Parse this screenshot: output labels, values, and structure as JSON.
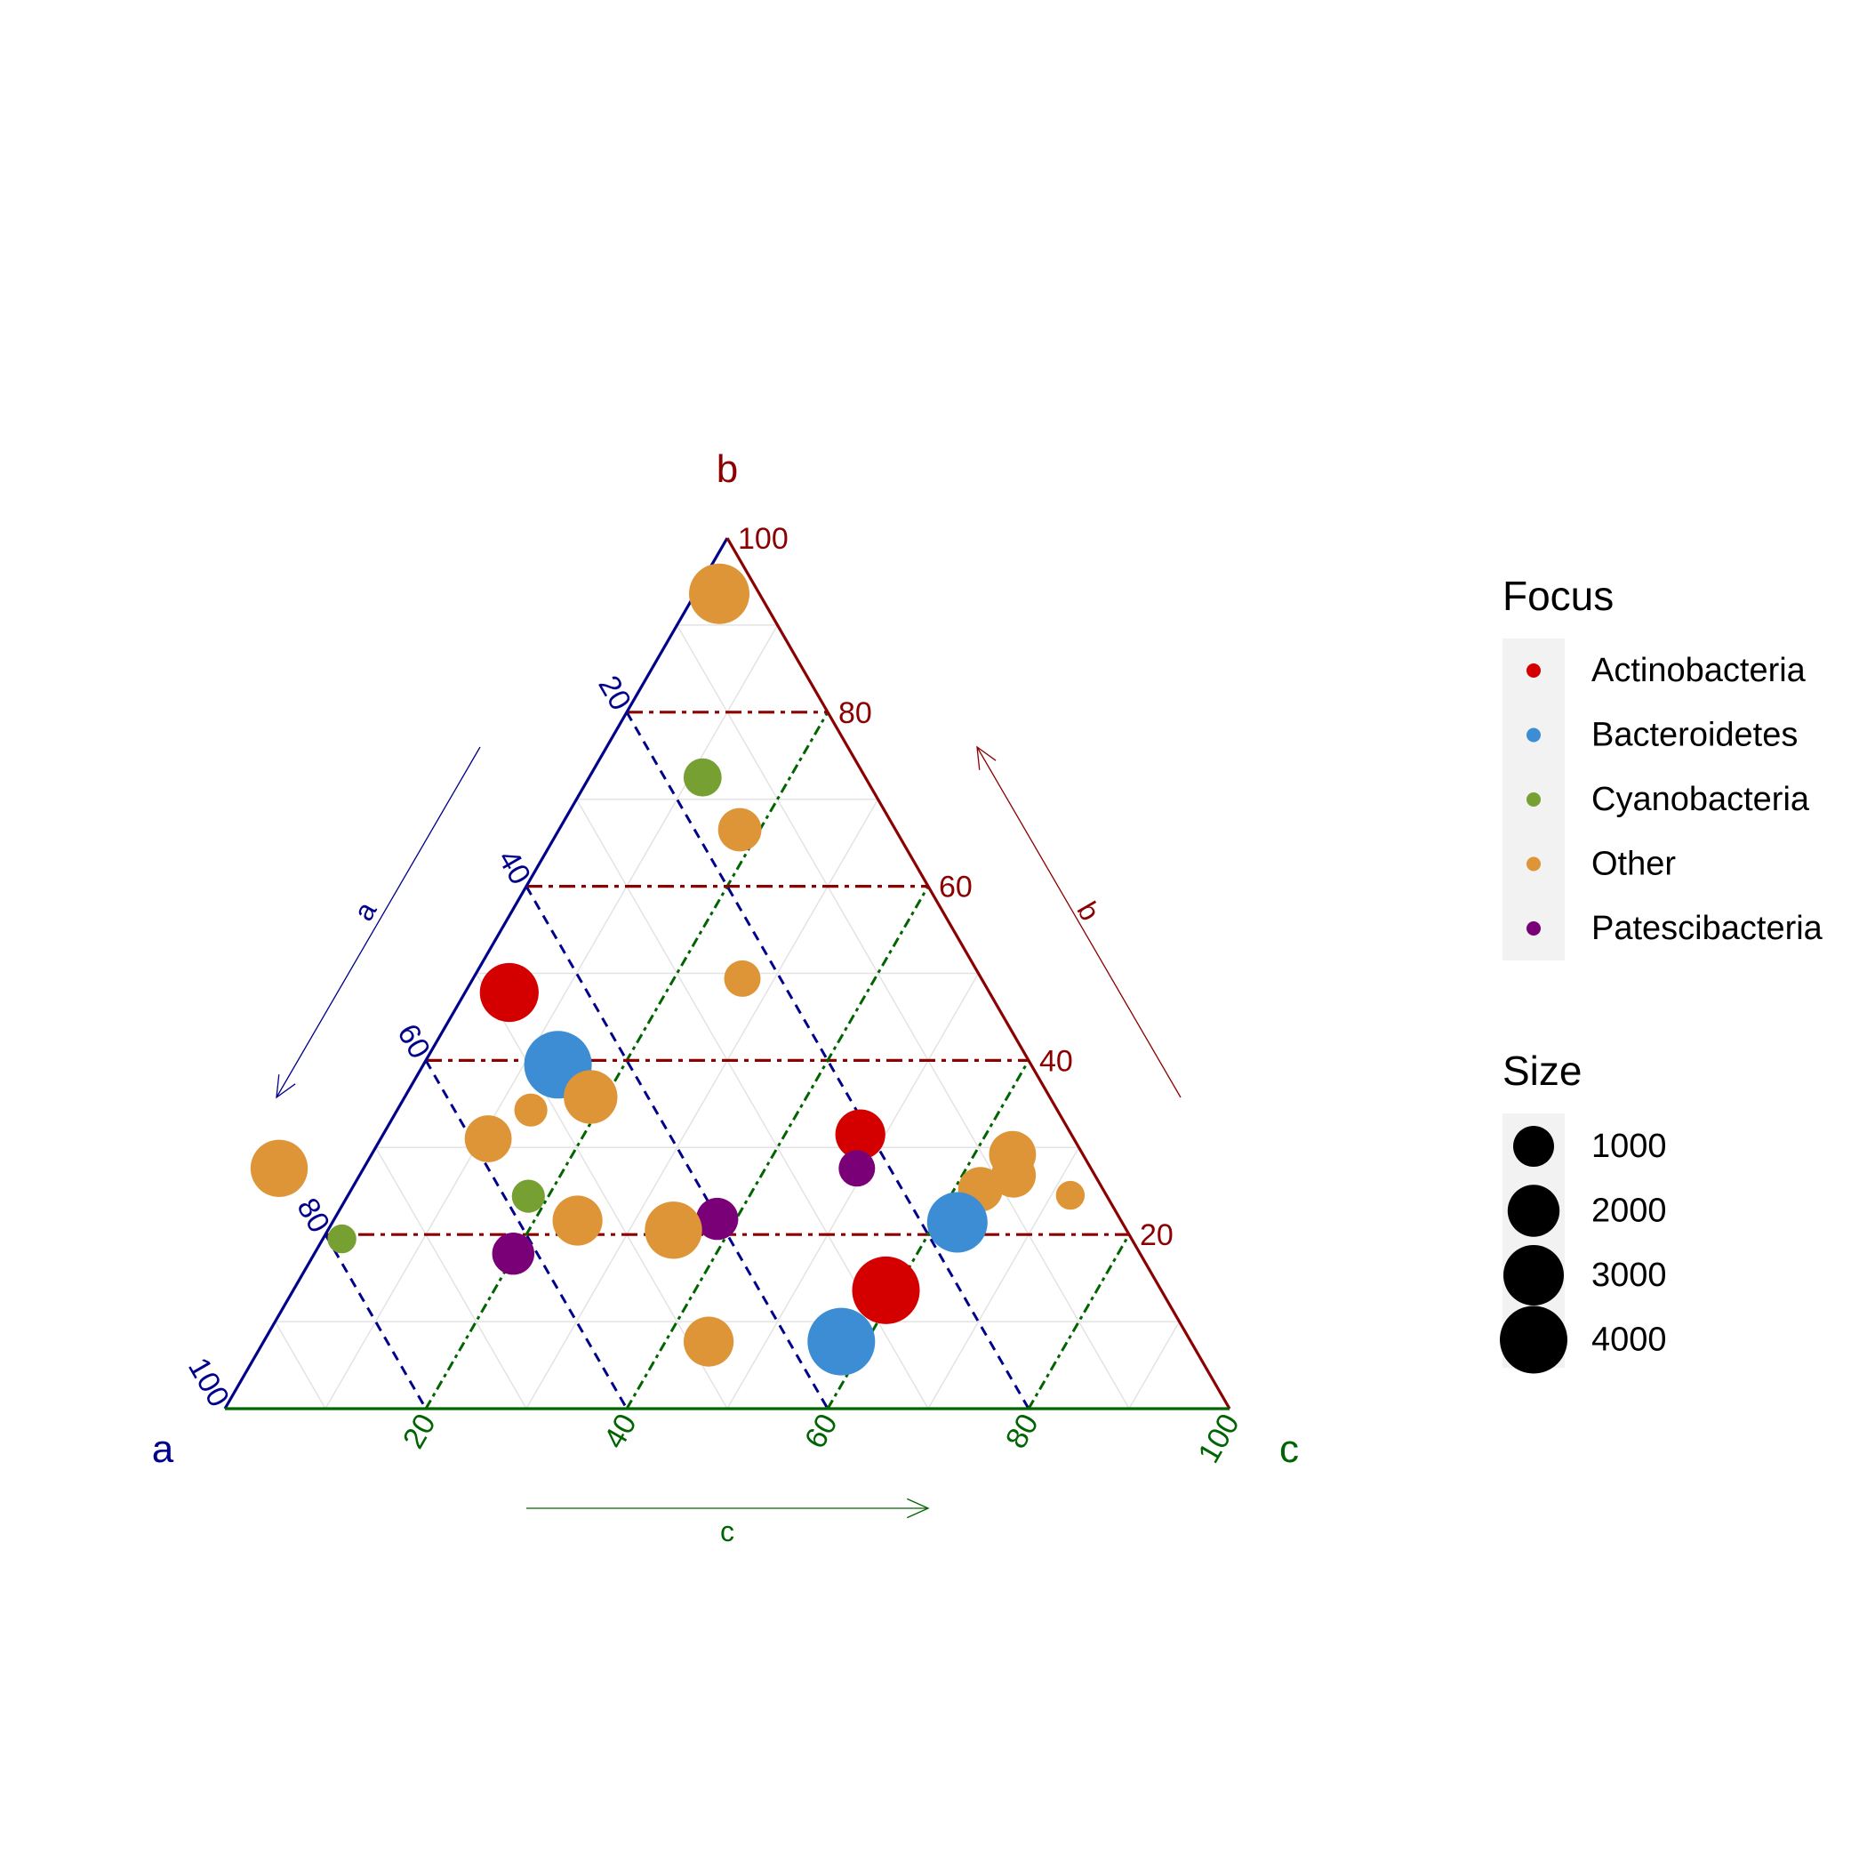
{
  "chart_data": {
    "type": "scatter",
    "subtype": "ternary",
    "axes": {
      "a": {
        "label": "a",
        "arrow_label": "a",
        "color": "#00008B",
        "ticks": [
          "20",
          "40",
          "60",
          "80",
          "100"
        ]
      },
      "b": {
        "label": "b",
        "arrow_label": "b",
        "color": "#8B0000",
        "ticks": [
          "20",
          "40",
          "60",
          "80",
          "100"
        ]
      },
      "c": {
        "label": "c",
        "arrow_label": "c",
        "color": "#006400",
        "ticks": [
          "20",
          "40",
          "60",
          "80",
          "100"
        ]
      }
    },
    "grid": true,
    "legend": {
      "position": "right",
      "focus_title": "Focus",
      "focus": [
        {
          "name": "Actinobacteria",
          "color": "#D40000"
        },
        {
          "name": "Bacteroidetes",
          "color": "#3C8DD3"
        },
        {
          "name": "Cyanobacteria",
          "color": "#77A033"
        },
        {
          "name": "Other",
          "color": "#DE9538"
        },
        {
          "name": "Patescibacteria",
          "color": "#7A0077"
        }
      ],
      "size_title": "Size",
      "sizes": [
        {
          "label": "1000",
          "value": 1000
        },
        {
          "label": "2000",
          "value": 2000
        },
        {
          "label": "3000",
          "value": 3000
        },
        {
          "label": "4000",
          "value": 4000
        }
      ]
    },
    "points": [
      {
        "focus": "Other",
        "a": 4,
        "b": 93.6,
        "c": 2.4,
        "size": 3000
      },
      {
        "focus": "Cyanobacteria",
        "a": 16.2,
        "b": 72.5,
        "c": 11.3,
        "size": 800
      },
      {
        "focus": "Other",
        "a": 15.5,
        "b": 66.5,
        "c": 18,
        "size": 1200
      },
      {
        "focus": "Other",
        "a": 23.8,
        "b": 49.4,
        "c": 26.8,
        "size": 700
      },
      {
        "focus": "Actinobacteria",
        "a": 47.8,
        "b": 47.8,
        "c": 4.4,
        "size": 2800
      },
      {
        "focus": "Bacteroidetes",
        "a": 47.1,
        "b": 39.5,
        "c": 13.4,
        "size": 4000
      },
      {
        "focus": "Other",
        "a": 45.7,
        "b": 35.8,
        "c": 18.5,
        "size": 2200
      },
      {
        "focus": "Other",
        "a": 52.4,
        "b": 34.3,
        "c": 13.3,
        "size": 500
      },
      {
        "focus": "Other",
        "a": 58.3,
        "b": 31,
        "c": 10.7,
        "size": 1500
      },
      {
        "focus": "Other",
        "a": 80.8,
        "b": 27.6,
        "c": -8.4,
        "size": 2600
      },
      {
        "focus": "Actinobacteria",
        "a": 21,
        "b": 31.5,
        "c": 47.5,
        "size": 1800
      },
      {
        "focus": "Patescibacteria",
        "a": 23.3,
        "b": 27.6,
        "c": 49.1,
        "size": 700
      },
      {
        "focus": "Other",
        "a": 7,
        "b": 29.2,
        "c": 63.8,
        "size": 1500
      },
      {
        "focus": "Other",
        "a": 8.1,
        "b": 26.8,
        "c": 65.1,
        "size": 1300
      },
      {
        "focus": "Other",
        "a": 12.2,
        "b": 25.2,
        "c": 62.6,
        "size": 1300
      },
      {
        "focus": "Other",
        "a": 3.6,
        "b": 24.5,
        "c": 71.9,
        "size": 300
      },
      {
        "focus": "Cyanobacteria",
        "a": 57.6,
        "b": 24.4,
        "c": 18,
        "size": 500
      },
      {
        "focus": "Other",
        "a": 54.1,
        "b": 21.6,
        "c": 24.3,
        "size": 1800
      },
      {
        "focus": "Patescibacteria",
        "a": 40.1,
        "b": 21.8,
        "c": 38.1,
        "size": 1100
      },
      {
        "focus": "Bacteroidetes",
        "a": 16.4,
        "b": 21.4,
        "c": 62.2,
        "size": 3000
      },
      {
        "focus": "Other",
        "a": 45.1,
        "b": 20.5,
        "c": 34.4,
        "size": 2600
      },
      {
        "focus": "Cyanobacteria",
        "a": 78.6,
        "b": 19.5,
        "c": 1.9,
        "size": 300
      },
      {
        "focus": "Patescibacteria",
        "a": 62.4,
        "b": 17.8,
        "c": 19.8,
        "size": 1100
      },
      {
        "focus": "Actinobacteria",
        "a": 27.4,
        "b": 13.6,
        "c": 59,
        "size": 4000
      },
      {
        "focus": "Other",
        "a": 48,
        "b": 7.7,
        "c": 44.3,
        "size": 1800
      },
      {
        "focus": "Bacteroidetes",
        "a": 34.8,
        "b": 7.7,
        "c": 57.5,
        "size": 4000
      }
    ]
  }
}
